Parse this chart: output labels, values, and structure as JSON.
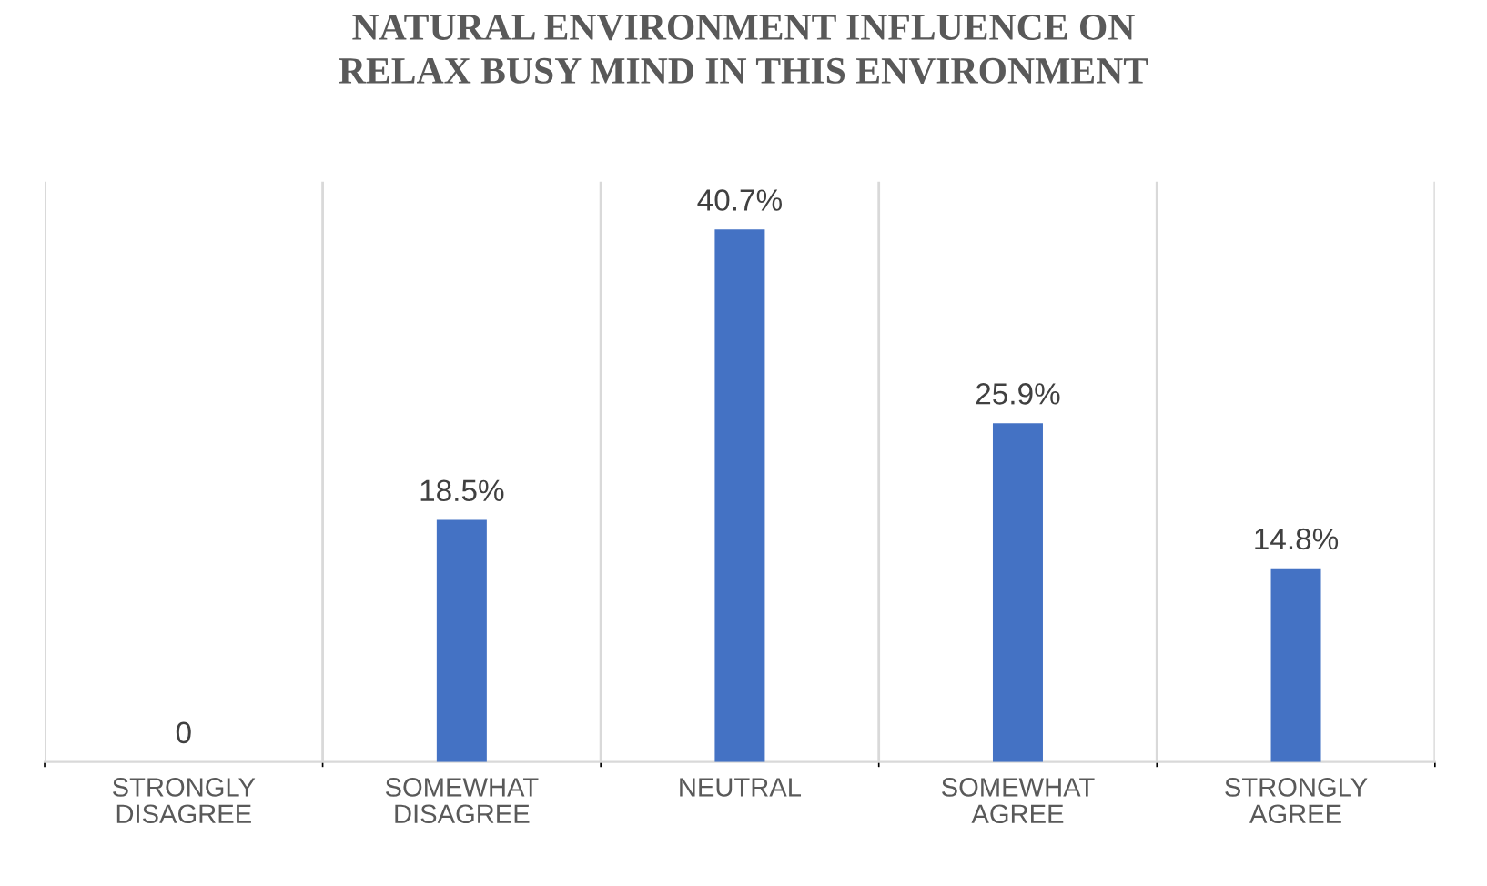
{
  "chart_data": {
    "type": "bar",
    "title": "NATURAL ENVIRONMENT INFLUENCE ON\nRELAX BUSY MIND IN THIS ENVIRONMENT",
    "categories": [
      "STRONGLY\nDISAGREE",
      "SOMEWHAT\nDISAGREE",
      "NEUTRAL",
      "SOMEWHAT\nAGREE",
      "STRONGLY\nAGREE"
    ],
    "values": [
      0,
      18.5,
      40.7,
      25.9,
      14.8
    ],
    "value_labels": [
      "0",
      "18.5%",
      "40.7%",
      "25.9%",
      "14.8%"
    ],
    "color": "#4472c4",
    "grid": "x"
  }
}
